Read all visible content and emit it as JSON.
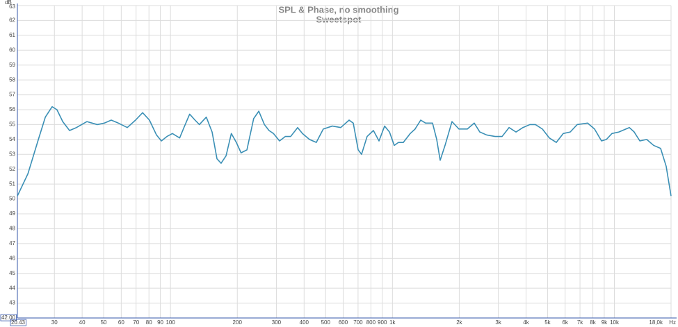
{
  "chart_data": {
    "type": "line",
    "title": "SPL & Phase, no smoothing",
    "subtitle": "Sweetspot",
    "xlabel": "Hz",
    "ylabel": "dB",
    "xscale": "log",
    "grid": true,
    "xlim": [
      20.43,
      18000
    ],
    "ylim": [
      42,
      63
    ],
    "xticks": [
      20.43,
      30,
      40,
      50,
      60,
      70,
      80,
      90,
      100,
      200,
      300,
      400,
      500,
      600,
      700,
      800,
      900,
      {
        "value": 1000,
        "label": "1k"
      },
      {
        "value": 2000,
        "label": "2k"
      },
      {
        "value": 3000,
        "label": "3k"
      },
      {
        "value": 4000,
        "label": "4k"
      },
      {
        "value": 5000,
        "label": "5k"
      },
      {
        "value": 6000,
        "label": "6k"
      },
      {
        "value": 7000,
        "label": "7k"
      },
      {
        "value": 8000,
        "label": "8k"
      },
      {
        "value": 9000,
        "label": "9k"
      },
      {
        "value": 10000,
        "label": "10k"
      },
      {
        "value": 18000,
        "label": "18,0k"
      }
    ],
    "yticks": [
      {
        "value": 42,
        "label": "42.00"
      },
      43,
      44,
      45,
      46,
      47,
      48,
      49,
      50,
      51,
      52,
      53,
      54,
      55,
      56,
      57,
      58,
      59,
      60,
      61,
      62,
      63
    ],
    "x": [
      20.43,
      22.8,
      25.4,
      27.3,
      29.3,
      30.8,
      32.7,
      35.1,
      37.7,
      42.0,
      46.8,
      50.4,
      54.1,
      58.2,
      63.9,
      69.6,
      74.9,
      80.4,
      86.5,
      91.0,
      96.4,
      102,
      110,
      115,
      122,
      129,
      135,
      145,
      154,
      162,
      169,
      178,
      188,
      198,
      208,
      221,
      237,
      250,
      265,
      278,
      291,
      310,
      329,
      348,
      374,
      393,
      423,
      454,
      488,
      536,
      585,
      638,
      666,
      701,
      726,
      769,
      821,
      870,
      922,
      970,
      1019,
      1065,
      1120,
      1203,
      1265,
      1341,
      1410,
      1516,
      1583,
      1641,
      1726,
      1855,
      1994,
      2174,
      2337,
      2476,
      2660,
      2901,
      3120,
      3353,
      3602,
      3872,
      4162,
      4409,
      4738,
      5093,
      5475,
      5884,
      6325,
      6797,
      7573,
      8141,
      8750,
      9204,
      9749,
      10478,
      11676,
      12283,
      13022,
      13987,
      15030,
      16154,
      17110,
      18000
    ],
    "series": [
      {
        "color": "#3a8fb5",
        "values": [
          50.2,
          51.7,
          54.0,
          55.5,
          56.2,
          56.0,
          55.2,
          54.6,
          54.8,
          55.2,
          55.0,
          55.1,
          55.3,
          55.1,
          54.8,
          55.3,
          55.8,
          55.3,
          54.3,
          53.9,
          54.2,
          54.4,
          54.1,
          54.8,
          55.7,
          55.3,
          55.0,
          55.5,
          54.5,
          52.7,
          52.4,
          52.9,
          54.4,
          53.8,
          53.1,
          53.3,
          55.4,
          55.9,
          55.0,
          54.6,
          54.4,
          53.9,
          54.2,
          54.2,
          54.8,
          54.4,
          54.0,
          53.8,
          54.7,
          54.9,
          54.8,
          55.3,
          55.1,
          53.3,
          53.0,
          54.2,
          54.6,
          53.9,
          54.9,
          54.5,
          53.6,
          53.8,
          53.8,
          54.4,
          54.7,
          55.3,
          55.1,
          55.1,
          54.0,
          52.6,
          53.6,
          55.2,
          54.7,
          54.7,
          55.1,
          54.5,
          54.3,
          54.2,
          54.2,
          54.8,
          54.5,
          54.8,
          55.0,
          55.0,
          54.7,
          54.1,
          53.8,
          54.4,
          54.5,
          55.0,
          55.1,
          54.7,
          53.9,
          54.0,
          54.4,
          54.5,
          54.8,
          54.5,
          53.9,
          54.0,
          53.6,
          53.4,
          52.2,
          50.2
        ]
      }
    ]
  }
}
